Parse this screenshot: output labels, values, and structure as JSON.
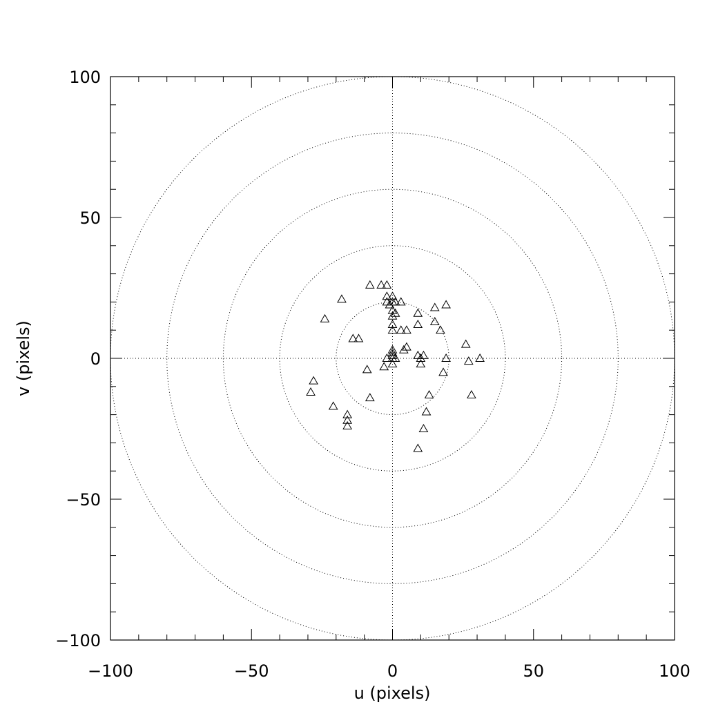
{
  "chart_data": {
    "type": "scatter",
    "title": "",
    "xlabel": "u (pixels)",
    "ylabel": "v (pixels)",
    "xlim": [
      -100,
      100
    ],
    "ylim": [
      -100,
      100
    ],
    "x_ticks": [
      -100,
      -50,
      0,
      50,
      100
    ],
    "y_ticks": [
      -100,
      -50,
      0,
      50,
      100
    ],
    "x_tick_labels": [
      "−100",
      "−50",
      "0",
      "50",
      "100"
    ],
    "y_tick_labels": [
      "−100",
      "−50",
      "0",
      "50",
      "100"
    ],
    "minor_tick_step": 10,
    "reference_circles_radii": [
      20,
      40,
      60,
      80,
      100
    ],
    "reference_lines": {
      "x": 0,
      "y": 0,
      "style": "dotted"
    },
    "grid": false,
    "marker": "open-triangle",
    "marker_color": "#000000",
    "series": [
      {
        "points": [
          [
            -8,
            26
          ],
          [
            -4,
            26
          ],
          [
            -2,
            26
          ],
          [
            -2,
            22
          ],
          [
            0,
            22
          ],
          [
            -2,
            20
          ],
          [
            0,
            20
          ],
          [
            1,
            20
          ],
          [
            3,
            20
          ],
          [
            -1,
            19
          ],
          [
            0,
            17
          ],
          [
            1,
            16
          ],
          [
            0,
            15
          ],
          [
            0,
            12
          ],
          [
            0,
            10
          ],
          [
            3,
            10
          ],
          [
            5,
            10
          ],
          [
            -18,
            21
          ],
          [
            -24,
            14
          ],
          [
            -14,
            7
          ],
          [
            -12,
            7
          ],
          [
            4,
            3
          ],
          [
            5,
            4
          ],
          [
            0,
            3
          ],
          [
            0,
            2
          ],
          [
            0,
            1
          ],
          [
            -2,
            0
          ],
          [
            0,
            0
          ],
          [
            1,
            0
          ],
          [
            0,
            -2
          ],
          [
            -3,
            -3
          ],
          [
            -9,
            -4
          ],
          [
            -8,
            -14
          ],
          [
            9,
            16
          ],
          [
            9,
            12
          ],
          [
            15,
            18
          ],
          [
            19,
            19
          ],
          [
            15,
            13
          ],
          [
            17,
            10
          ],
          [
            9,
            1
          ],
          [
            10,
            0
          ],
          [
            11,
            1
          ],
          [
            10,
            -2
          ],
          [
            19,
            0
          ],
          [
            18,
            -5
          ],
          [
            26,
            5
          ],
          [
            27,
            -1
          ],
          [
            31,
            0
          ],
          [
            28,
            -13
          ],
          [
            13,
            -13
          ],
          [
            12,
            -19
          ],
          [
            11,
            -25
          ],
          [
            9,
            -32
          ],
          [
            -28,
            -8
          ],
          [
            -29,
            -12
          ],
          [
            -21,
            -17
          ],
          [
            -16,
            -20
          ],
          [
            -16,
            -22
          ],
          [
            -16,
            -24
          ]
        ]
      }
    ]
  }
}
